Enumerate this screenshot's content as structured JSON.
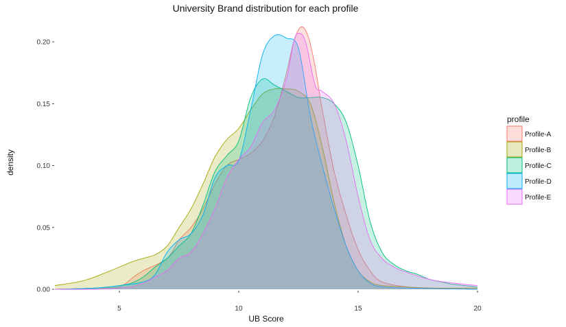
{
  "chart_data": {
    "type": "area",
    "title": "University Brand distribution for each profile",
    "xlabel": "UB Score",
    "ylabel": "density",
    "xlim": [
      2.3,
      20
    ],
    "ylim": [
      0,
      0.215
    ],
    "x_ticks": [
      5,
      10,
      15,
      20
    ],
    "y_ticks": [
      0.0,
      0.05,
      0.1,
      0.15,
      0.2
    ],
    "y_tick_labels": [
      "0.00",
      "0.05",
      "0.10",
      "0.15",
      "0.20"
    ],
    "grid": false,
    "legend": {
      "title": "profile",
      "position": "right"
    },
    "series": [
      {
        "name": "Profile-A",
        "color": "#F8766D",
        "points": [
          [
            2.3,
            0
          ],
          [
            4,
            0.001
          ],
          [
            5,
            0.002
          ],
          [
            5.6,
            0.01
          ],
          [
            6,
            0.015
          ],
          [
            7,
            0.025
          ],
          [
            7.5,
            0.04
          ],
          [
            8,
            0.05
          ],
          [
            8.5,
            0.065
          ],
          [
            9,
            0.085
          ],
          [
            9.5,
            0.1
          ],
          [
            10,
            0.105
          ],
          [
            10.5,
            0.11
          ],
          [
            11,
            0.12
          ],
          [
            11.5,
            0.14
          ],
          [
            12,
            0.175
          ],
          [
            12.3,
            0.2
          ],
          [
            12.6,
            0.212
          ],
          [
            12.9,
            0.205
          ],
          [
            13.2,
            0.18
          ],
          [
            13.5,
            0.145
          ],
          [
            14,
            0.095
          ],
          [
            14.5,
            0.06
          ],
          [
            15,
            0.032
          ],
          [
            15.5,
            0.015
          ],
          [
            16,
            0.006
          ],
          [
            17,
            0.002
          ],
          [
            18,
            0.001
          ],
          [
            20,
            0
          ]
        ]
      },
      {
        "name": "Profile-B",
        "color": "#A3A500",
        "points": [
          [
            2.3,
            0.003
          ],
          [
            3.5,
            0.007
          ],
          [
            4.5,
            0.014
          ],
          [
            5.5,
            0.022
          ],
          [
            6,
            0.025
          ],
          [
            6.5,
            0.028
          ],
          [
            7,
            0.035
          ],
          [
            7.5,
            0.05
          ],
          [
            8,
            0.065
          ],
          [
            8.5,
            0.085
          ],
          [
            9,
            0.107
          ],
          [
            9.5,
            0.121
          ],
          [
            10,
            0.13
          ],
          [
            10.5,
            0.145
          ],
          [
            11,
            0.158
          ],
          [
            11.5,
            0.162
          ],
          [
            12,
            0.162
          ],
          [
            12.5,
            0.16
          ],
          [
            13,
            0.15
          ],
          [
            13.5,
            0.115
          ],
          [
            14,
            0.07
          ],
          [
            14.5,
            0.035
          ],
          [
            15,
            0.015
          ],
          [
            15.5,
            0.006
          ],
          [
            16,
            0.003
          ],
          [
            17,
            0.002
          ],
          [
            18,
            0.001
          ],
          [
            20,
            0.001
          ]
        ]
      },
      {
        "name": "Profile-C",
        "color": "#00BF7D",
        "points": [
          [
            2.3,
            0
          ],
          [
            4,
            0.001
          ],
          [
            5,
            0.003
          ],
          [
            5.5,
            0.005
          ],
          [
            6,
            0.01
          ],
          [
            6.5,
            0.018
          ],
          [
            7,
            0.025
          ],
          [
            7.5,
            0.035
          ],
          [
            8,
            0.045
          ],
          [
            8.5,
            0.068
          ],
          [
            9,
            0.095
          ],
          [
            9.5,
            0.108
          ],
          [
            10,
            0.12
          ],
          [
            10.5,
            0.155
          ],
          [
            11,
            0.17
          ],
          [
            11.5,
            0.165
          ],
          [
            12,
            0.16
          ],
          [
            12.5,
            0.155
          ],
          [
            13,
            0.155
          ],
          [
            13.5,
            0.155
          ],
          [
            14,
            0.15
          ],
          [
            14.5,
            0.135
          ],
          [
            15,
            0.1
          ],
          [
            15.5,
            0.055
          ],
          [
            16,
            0.03
          ],
          [
            16.5,
            0.02
          ],
          [
            17,
            0.015
          ],
          [
            17.5,
            0.012
          ],
          [
            18,
            0.008
          ],
          [
            18.5,
            0.006
          ],
          [
            19,
            0.004
          ],
          [
            20,
            0.002
          ]
        ]
      },
      {
        "name": "Profile-D",
        "color": "#00B0F6",
        "points": [
          [
            2.3,
            0
          ],
          [
            4,
            0.001
          ],
          [
            5,
            0.003
          ],
          [
            6,
            0.006
          ],
          [
            6.5,
            0.012
          ],
          [
            7,
            0.03
          ],
          [
            7.5,
            0.04
          ],
          [
            8,
            0.045
          ],
          [
            8.5,
            0.06
          ],
          [
            9,
            0.09
          ],
          [
            9.5,
            0.1
          ],
          [
            10,
            0.104
          ],
          [
            10.5,
            0.145
          ],
          [
            11,
            0.19
          ],
          [
            11.5,
            0.205
          ],
          [
            12,
            0.203
          ],
          [
            12.5,
            0.195
          ],
          [
            13,
            0.14
          ],
          [
            13.5,
            0.1
          ],
          [
            14,
            0.065
          ],
          [
            14.5,
            0.035
          ],
          [
            15,
            0.015
          ],
          [
            15.5,
            0.005
          ],
          [
            16,
            0.002
          ],
          [
            17,
            0.001
          ],
          [
            20,
            0
          ]
        ]
      },
      {
        "name": "Profile-E",
        "color": "#E76BF3",
        "points": [
          [
            2.3,
            0
          ],
          [
            4,
            0
          ],
          [
            5,
            0.001
          ],
          [
            5.5,
            0.002
          ],
          [
            6,
            0.005
          ],
          [
            6.5,
            0.01
          ],
          [
            7,
            0.015
          ],
          [
            7.5,
            0.025
          ],
          [
            8,
            0.03
          ],
          [
            8.5,
            0.045
          ],
          [
            9,
            0.065
          ],
          [
            9.5,
            0.09
          ],
          [
            10,
            0.105
          ],
          [
            10.5,
            0.115
          ],
          [
            11,
            0.135
          ],
          [
            11.5,
            0.145
          ],
          [
            12,
            0.17
          ],
          [
            12.3,
            0.2
          ],
          [
            12.5,
            0.207
          ],
          [
            12.8,
            0.2
          ],
          [
            13.2,
            0.165
          ],
          [
            13.5,
            0.16
          ],
          [
            14,
            0.15
          ],
          [
            14.5,
            0.12
          ],
          [
            15,
            0.075
          ],
          [
            15.5,
            0.04
          ],
          [
            16,
            0.025
          ],
          [
            16.5,
            0.018
          ],
          [
            17,
            0.014
          ],
          [
            18,
            0.008
          ],
          [
            19,
            0.005
          ],
          [
            20,
            0.003
          ]
        ]
      }
    ]
  }
}
